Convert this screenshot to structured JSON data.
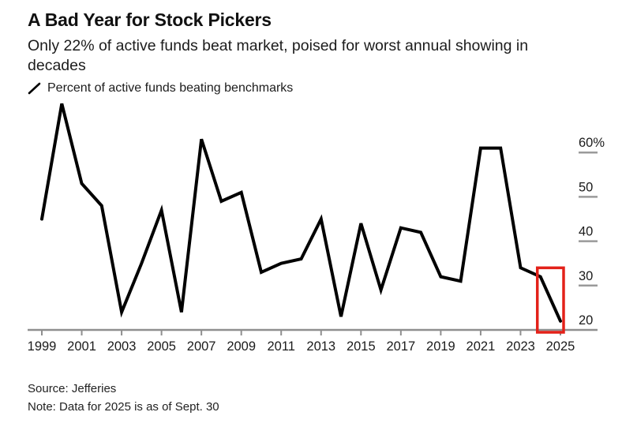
{
  "header": {
    "title": "A Bad Year for Stock Pickers",
    "subtitle": "Only 22% of active funds beat market, poised for worst annual showing in decades"
  },
  "legend": {
    "label": "Percent of active funds beating benchmarks",
    "icon": "line-slash"
  },
  "footer": {
    "source": "Source: Jefferies",
    "note": "Note: Data for 2025 is as of Sept. 30"
  },
  "colors": {
    "line": "#000000",
    "highlight_box": "#e32119",
    "axis": "#8f8f8f",
    "tick_text": "#1b1b1b",
    "background": "#ffffff"
  },
  "chart_data": {
    "type": "line",
    "title": "A Bad Year for Stock Pickers",
    "subtitle": "Only 22% of active funds beat market, poised for worst annual showing in decades",
    "xlabel": "",
    "ylabel": "Percent of active funds beating benchmarks",
    "grid": false,
    "legend_position": "top-left",
    "xlim": [
      1999,
      2025
    ],
    "ylim": [
      18,
      72
    ],
    "x": [
      1999,
      2000,
      2001,
      2002,
      2003,
      2004,
      2005,
      2006,
      2007,
      2008,
      2009,
      2010,
      2011,
      2012,
      2013,
      2014,
      2015,
      2016,
      2017,
      2018,
      2019,
      2020,
      2021,
      2022,
      2023,
      2024,
      2025
    ],
    "series": [
      {
        "name": "Percent of active funds beating benchmarks",
        "values": [
          45,
          71,
          53,
          48,
          24,
          35,
          47,
          24,
          63,
          49,
          51,
          33,
          35,
          36,
          45,
          23,
          44,
          29,
          43,
          42,
          32,
          31,
          61,
          61,
          34,
          32,
          22
        ]
      }
    ],
    "x_axis": {
      "tick_labels": [
        "1999",
        "2001",
        "2003",
        "2005",
        "2007",
        "2009",
        "2011",
        "2013",
        "2015",
        "2017",
        "2019",
        "2021",
        "2023",
        "2025"
      ]
    },
    "y_axis": {
      "side": "right",
      "tick_values": [
        60,
        50,
        40,
        30,
        20
      ],
      "tick_labels": [
        "60%",
        "50",
        "40",
        "30",
        "20"
      ]
    },
    "highlight_box": {
      "from_year": 2024,
      "to_year": 2025,
      "top_value": 34
    }
  }
}
